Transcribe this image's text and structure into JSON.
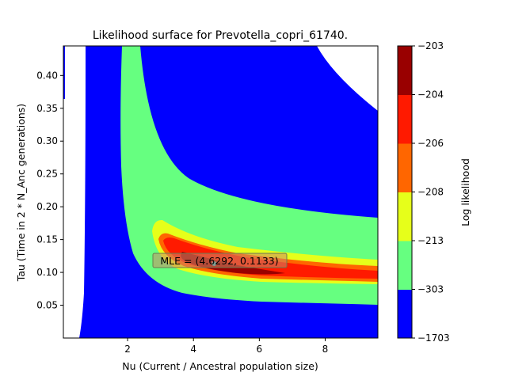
{
  "chart_data": {
    "type": "contour",
    "title": "Likelihood surface for Prevotella_copri_61740.",
    "xlabel": "Nu (Current / Ancestral population size)",
    "ylabel": "Tau (Time in 2 * N_Anc generations)",
    "xlim": [
      0.05,
      9.6
    ],
    "ylim": [
      0.0,
      0.445
    ],
    "xticks": [
      "2",
      "4",
      "6",
      "8"
    ],
    "yticks": [
      "0.05",
      "0.10",
      "0.15",
      "0.20",
      "0.25",
      "0.30",
      "0.35",
      "0.40"
    ],
    "colorbar": {
      "label": "Log likelihood",
      "levels": [
        "-1703",
        "-303",
        "-213",
        "-208",
        "-206",
        "-204",
        "-203"
      ],
      "colors": [
        "#0000ff",
        "#66ff80",
        "#e6ff1a",
        "#ff6600",
        "#ff1a00",
        "#990000"
      ]
    },
    "mle": {
      "nu": 4.6292,
      "tau": 0.1133,
      "label": "MLE = (4.6292, 0.1133)"
    },
    "grid": false,
    "legend": "none"
  }
}
